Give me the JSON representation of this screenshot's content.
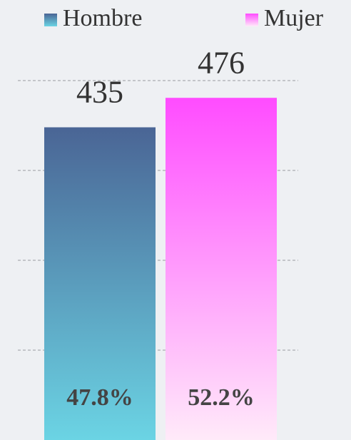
{
  "chart_data": {
    "type": "bar",
    "series": [
      {
        "name": "Hombre",
        "color": [
          "#4a6595",
          "#6bd4e4"
        ],
        "values": [
          435
        ],
        "percentage_label": "47.8%"
      },
      {
        "name": "Mujer",
        "color": [
          "#ff4cff",
          "#ffeaf9"
        ],
        "values": [
          476
        ],
        "percentage_label": "52.2%"
      }
    ],
    "ylim": [
      0,
      500
    ],
    "yticks": [
      125,
      250,
      375,
      500
    ],
    "grid": true,
    "legend": "top"
  }
}
